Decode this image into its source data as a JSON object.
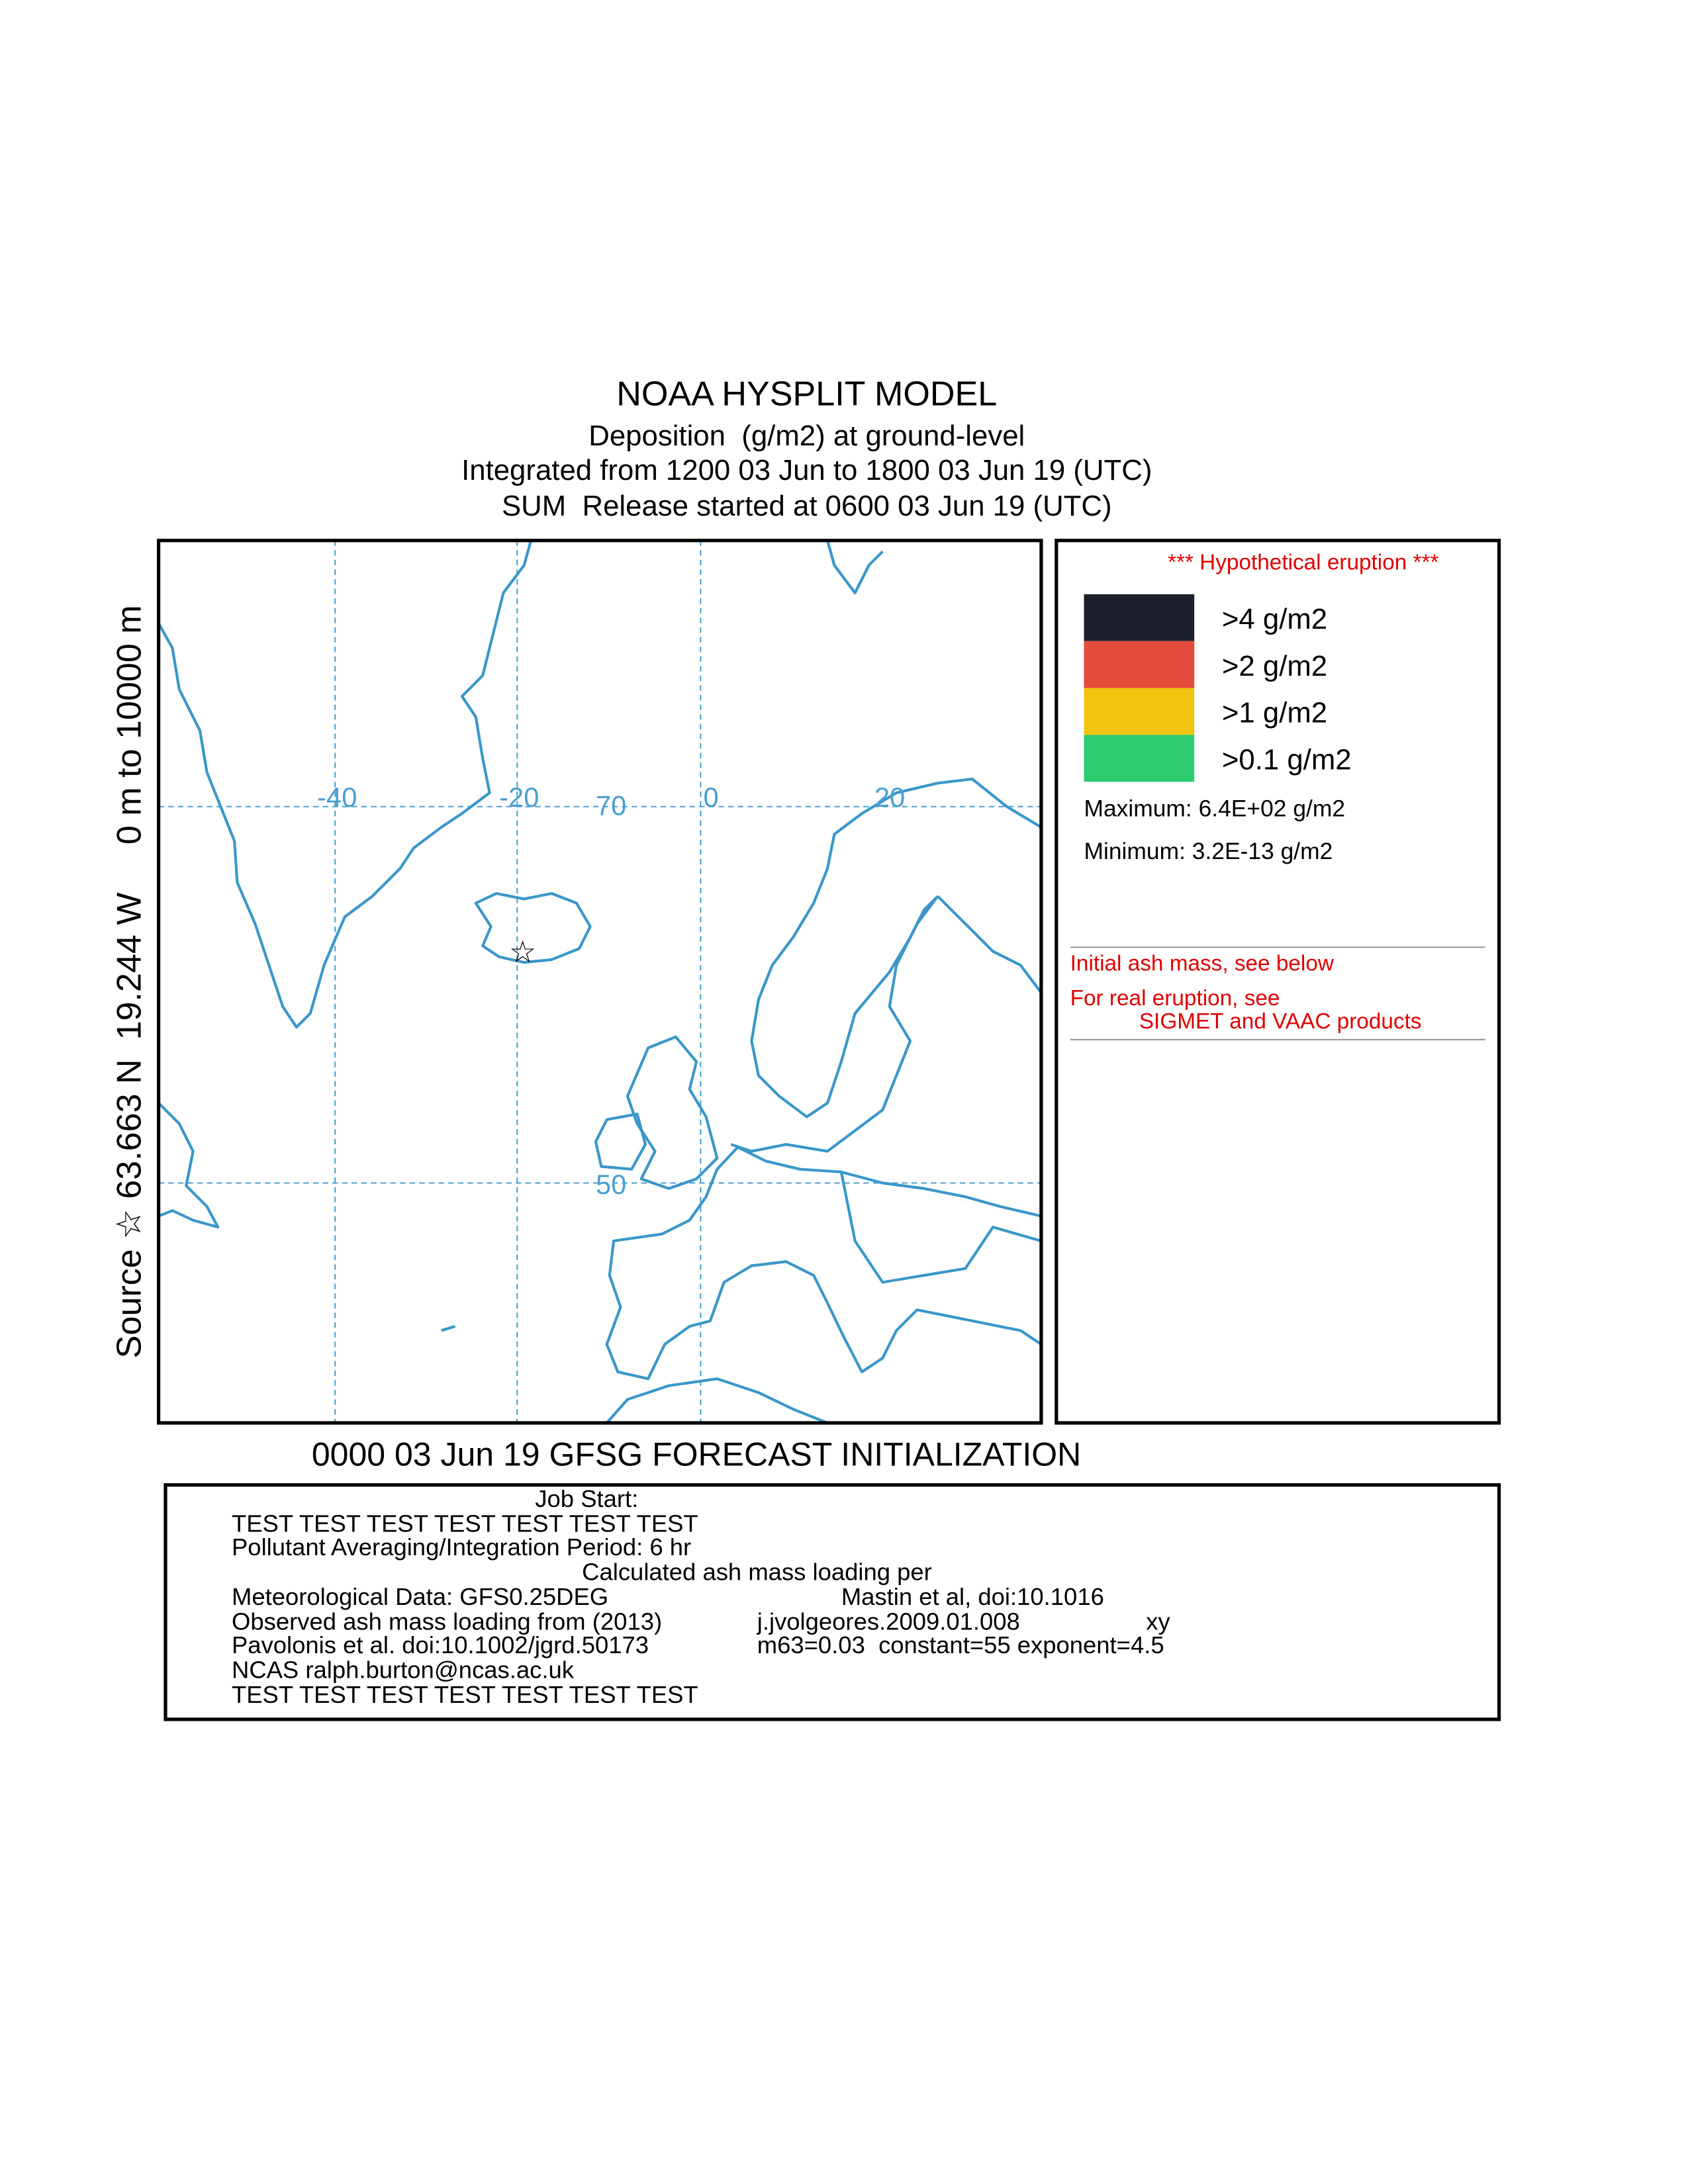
{
  "header": {
    "title": "NOAA HYSPLIT MODEL",
    "lines": [
      "Deposition  (g/m2) at ground-level",
      "Integrated from 1200 03 Jun to 1800 03 Jun 19 (UTC)",
      "SUM  Release started at 0600 03 Jun 19 (UTC)"
    ]
  },
  "side_label": "Source ☆ 63.663 N  19.244 W     0 m to 10000 m",
  "map": {
    "grid_labels": [
      "-40",
      "-20",
      "70",
      "0",
      "20",
      "50"
    ],
    "coast_color": "#3a97c9",
    "grid_color": "#4a9fd0"
  },
  "legend": {
    "note": "*** Hypothetical eruption ***",
    "items": [
      {
        "label": ">4 g/m2",
        "color": "#1b202b"
      },
      {
        "label": ">2 g/m2",
        "color": "#e64c3c"
      },
      {
        "label": ">1 g/m2",
        "color": "#f1c40f"
      },
      {
        "label": ">0.1 g/m2",
        "color": "#2ecc71"
      }
    ],
    "maximum": "Maximum: 6.4E+02 g/m2",
    "minimum": "Minimum: 3.2E-13 g/m2",
    "remarks": [
      "Initial ash mass, see below",
      "For real eruption, see",
      "SIGMET and VAAC products"
    ]
  },
  "initialization": "0000 03 Jun 19 GFSG FORECAST INITIALIZATION",
  "footer": {
    "lines": [
      "Job Start:",
      "TEST TEST TEST TEST TEST TEST TEST",
      "Pollutant Averaging/Integration Period: 6 hr",
      "Calculated ash mass loading per",
      "Meteorological Data: GFS0.25DEG",
      "Mastin et al, doi:10.1016",
      "Observed ash mass loading from (2013)",
      "j.jvolgeores.2009.01.008",
      "xy",
      "Pavolonis et al. doi:10.1002/jgrd.50173",
      "m63=0.03  constant=55 exponent=4.5",
      "NCAS ralph.burton@ncas.ac.uk",
      "TEST TEST TEST TEST TEST TEST TEST"
    ]
  }
}
